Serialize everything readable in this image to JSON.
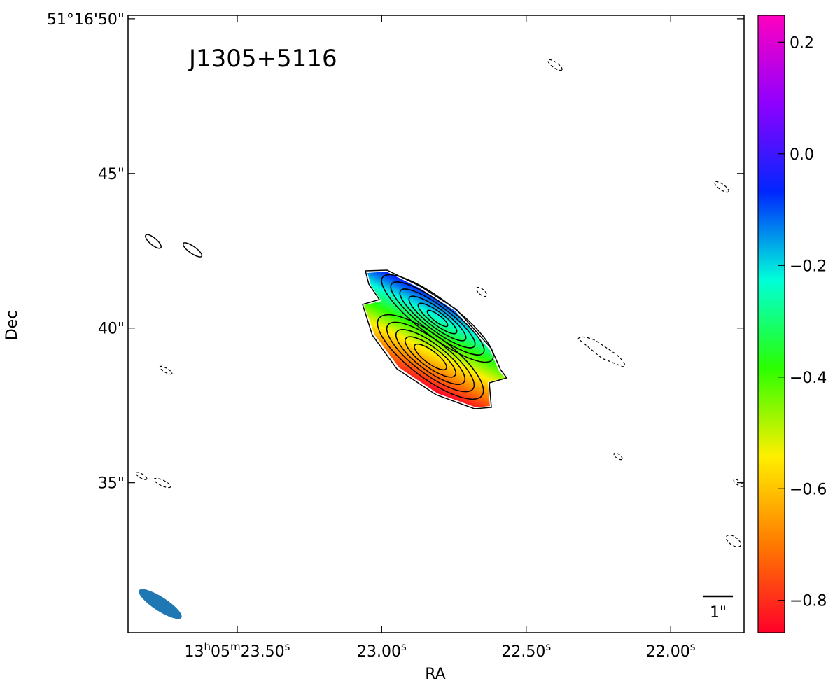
{
  "chart_data": {
    "type": "image",
    "annotation": "J1305+5116",
    "xlabel": "RA",
    "ylabel": "Dec",
    "xlim": [
      23.878,
      21.746
    ],
    "xticks": [
      {
        "value": 23.5,
        "label": "13h05m23.50s"
      },
      {
        "value": 23.0,
        "label": "23.00s"
      },
      {
        "value": 22.5,
        "label": "22.50s"
      },
      {
        "value": 22.0,
        "label": "22.00s"
      }
    ],
    "ylim": [
      30.15,
      50.11
    ],
    "yticks": [
      {
        "value": 50,
        "label": "51°16'50\""
      },
      {
        "value": 45,
        "label": "45\""
      },
      {
        "value": 40,
        "label": "40\""
      },
      {
        "value": 35,
        "label": "35\""
      }
    ],
    "scale_bar_label": "1\"",
    "colorbar": {
      "clim": [
        -0.858,
        0.248
      ],
      "ticks": [
        {
          "value": 0.2,
          "label": "0.2"
        },
        {
          "value": 0,
          "label": "0.0"
        },
        {
          "value": -0.2,
          "label": "−0.2"
        },
        {
          "value": -0.4,
          "label": "−0.4"
        },
        {
          "value": -0.6,
          "label": "−0.6"
        },
        {
          "value": -0.8,
          "label": "−0.8"
        }
      ],
      "colormap": [
        "#ff0029",
        "#ff7a00",
        "#ffef00",
        "#2bff00",
        "#00ffd9",
        "#0026ff",
        "#8f00ff",
        "#ff00bf"
      ]
    },
    "beam_color": "#1f77b4"
  }
}
